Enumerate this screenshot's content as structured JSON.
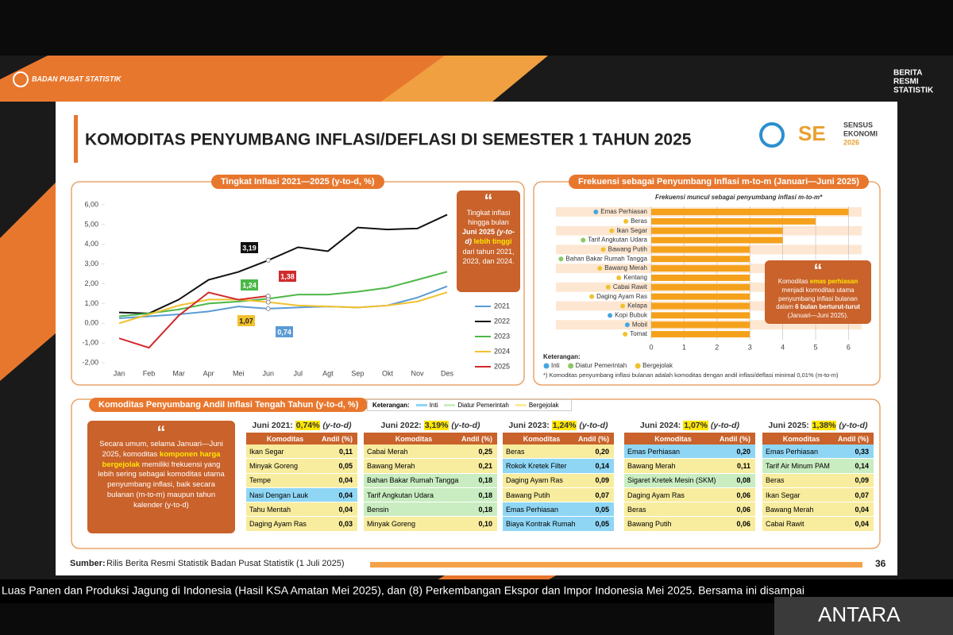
{
  "header": {
    "org": "BADAN PUSAT STATISTIK",
    "brand": [
      "BERITA",
      "RESMI",
      "STATISTIK"
    ],
    "title": "KOMODITAS PENYUMBANG INFLASI/DEFLASI DI SEMESTER 1 TAHUN 2025",
    "sensus": [
      "SENSUS",
      "EKONOMI",
      "2026"
    ]
  },
  "chart_data": [
    {
      "type": "line",
      "title": "Tingkat Inflasi 2021—2025 (y-to-d, %)",
      "categories": [
        "Jan",
        "Feb",
        "Mar",
        "Apr",
        "Mei",
        "Jun",
        "Jul",
        "Agt",
        "Sep",
        "Okt",
        "Nov",
        "Des"
      ],
      "ylim": [
        -2,
        6
      ],
      "yticks": [
        {
          "value": 6,
          "label": "6,00"
        },
        {
          "value": 5,
          "label": "5,00"
        },
        {
          "value": 4,
          "label": "4,00"
        },
        {
          "value": 3,
          "label": "3,00"
        },
        {
          "value": 2,
          "label": "2,00"
        },
        {
          "value": 1,
          "label": "1,00"
        },
        {
          "value": 0,
          "label": "0,00"
        },
        {
          "value": -1,
          "label": "-1,00"
        },
        {
          "value": -2,
          "label": "-2,00"
        }
      ],
      "series": [
        {
          "name": "2021",
          "color": "#5b9bd5",
          "values": [
            0.25,
            0.35,
            0.45,
            0.6,
            0.85,
            0.74,
            0.8,
            0.85,
            0.8,
            0.9,
            1.3,
            1.87
          ],
          "value_labels": [
            null,
            null,
            null,
            null,
            null,
            "0,74",
            null,
            null,
            null,
            null,
            null,
            null
          ]
        },
        {
          "name": "2022",
          "color": "#111111",
          "values": [
            0.55,
            0.5,
            1.2,
            2.2,
            2.6,
            3.19,
            3.85,
            3.65,
            4.85,
            4.75,
            4.8,
            5.5
          ],
          "value_labels": [
            null,
            null,
            null,
            null,
            null,
            "3,19",
            null,
            null,
            null,
            null,
            null,
            null
          ]
        },
        {
          "name": "2023",
          "color": "#4cb848",
          "values": [
            0.35,
            0.5,
            0.7,
            1.0,
            1.1,
            1.24,
            1.45,
            1.45,
            1.6,
            1.8,
            2.2,
            2.61
          ],
          "value_labels": [
            null,
            null,
            null,
            null,
            null,
            "1,24",
            null,
            null,
            null,
            null,
            null,
            null
          ]
        },
        {
          "name": "2024",
          "color": "#f2c12e",
          "values": [
            0.0,
            0.45,
            0.9,
            1.2,
            1.2,
            1.07,
            0.9,
            0.85,
            0.8,
            0.9,
            1.1,
            1.57
          ],
          "value_labels": [
            null,
            null,
            null,
            null,
            null,
            "1,07",
            null,
            null,
            null,
            null,
            null,
            null
          ]
        },
        {
          "name": "2025",
          "color": "#d12b2b",
          "values": [
            -0.76,
            -1.24,
            0.39,
            1.56,
            1.19,
            1.38,
            null,
            null,
            null,
            null,
            null,
            null
          ],
          "value_labels": [
            null,
            null,
            null,
            null,
            null,
            "1,38",
            null,
            null,
            null,
            null,
            null,
            null
          ]
        }
      ],
      "callout": [
        "Tingkat inflasi hingga bulan",
        "Juni 2025",
        "(y-to-d)",
        "lebih tinggi",
        "dari tahun 2021, 2023, dan 2024."
      ]
    },
    {
      "type": "bar",
      "orientation": "horizontal",
      "title": "Frekuensi sebagai Penyumbang Inflasi m-to-m (Januari—Juni 2025)",
      "subtitle": "Frekuensi muncul sebagai penyumbang inflasi m-to-m*",
      "categories": [
        "Emas Perhiasan",
        "Beras",
        "Ikan Segar",
        "Tarif Angkutan Udara",
        "Bawang Putih",
        "Bahan Bakar Rumah Tangga",
        "Bawang Merah",
        "Kentang",
        "Cabai Rawit",
        "Daging Ayam Ras",
        "Kelapa",
        "Kopi Bubuk",
        "Mobil",
        "Tomat"
      ],
      "values": [
        6,
        5,
        4,
        4,
        3,
        3,
        3,
        3,
        3,
        3,
        3,
        3,
        3,
        3
      ],
      "category_groups": [
        0,
        2,
        2,
        1,
        2,
        1,
        2,
        2,
        2,
        2,
        2,
        0,
        0,
        2
      ],
      "color": "#f5a11c",
      "xlim": [
        0,
        6.4
      ],
      "xticks": [
        0,
        1,
        2,
        3,
        4,
        5,
        6
      ],
      "legend_label": "Keterangan:",
      "groups": [
        {
          "name": "Inti",
          "color": "#45a6e0"
        },
        {
          "name": "Diatur Pemerintah",
          "color": "#8cc864"
        },
        {
          "name": "Bergejolak",
          "color": "#f2c12e"
        }
      ],
      "footnote": "*) Komoditas penyumbang inflasi bulanan adalah komoditas dengan andil inflasi/deflasi minimal 0,01% (m-to-m)",
      "callout": [
        "Komoditas",
        "emas perhiasan",
        "menjadi komoditas utama penyumbang inflasi bulanan dalam",
        "6 bulan berturut-turut",
        "(Januari—Juni 2025)."
      ]
    }
  ],
  "contributors": {
    "title": "Komoditas Penyumbang Andil Inflasi Tengah Tahun (y-to-d, %)",
    "legend": {
      "label": "Keterangan:",
      "items": [
        {
          "name": "Inti",
          "color": "#8fd6f5"
        },
        {
          "name": "Diatur Pemerintah",
          "color": "#c9edc1"
        },
        {
          "name": "Bergejolak",
          "color": "#f8ec9e"
        }
      ]
    },
    "callout": [
      "Secara umum, selama Januari—Juni 2025, komoditas",
      "komponen harga bergejolak",
      "memiliki frekuensi yang lebih sering sebagai komoditas utama penyumbang inflasi, baik secara bulanan (m-to-m) maupun tahun kalender (y-to-d)"
    ],
    "tables": [
      {
        "title": "Juni 2021:",
        "rate": "0,74%",
        "suffix": "(y-to-d)",
        "columns": [
          "Komoditas",
          "Andil (%)"
        ],
        "rows": [
          [
            "Ikan Segar",
            "0,11"
          ],
          [
            "Minyak Goreng",
            "0,05"
          ],
          [
            "Tempe",
            "0,04"
          ],
          [
            "Nasi Dengan Lauk",
            "0,04"
          ],
          [
            "Tahu Mentah",
            "0,04"
          ],
          [
            "Daging Ayam Ras",
            "0,03"
          ]
        ],
        "row_groups": [
          2,
          2,
          2,
          0,
          2,
          2
        ]
      },
      {
        "title": "Juni 2022:",
        "rate": "3,19%",
        "suffix": "(y-to-d)",
        "columns": [
          "Komoditas",
          "Andil (%)"
        ],
        "rows": [
          [
            "Cabai Merah",
            "0,25"
          ],
          [
            "Bawang Merah",
            "0,21"
          ],
          [
            "Bahan Bakar Rumah Tangga",
            "0,18"
          ],
          [
            "Tarif Angkutan Udara",
            "0,18"
          ],
          [
            "Bensin",
            "0,18"
          ],
          [
            "Minyak Goreng",
            "0,10"
          ]
        ],
        "row_groups": [
          2,
          2,
          1,
          1,
          1,
          2
        ]
      },
      {
        "title": "Juni 2023:",
        "rate": "1,24%",
        "suffix": "(y-to-d)",
        "columns": [
          "Komoditas",
          "Andil (%)"
        ],
        "rows": [
          [
            "Beras",
            "0,20"
          ],
          [
            "Rokok Kretek Filter",
            "0,14"
          ],
          [
            "Daging Ayam Ras",
            "0,09"
          ],
          [
            "Bawang Putih",
            "0,07"
          ],
          [
            "Emas Perhiasan",
            "0,05"
          ],
          [
            "Biaya Kontrak Rumah",
            "0,05"
          ]
        ],
        "row_groups": [
          2,
          0,
          2,
          2,
          0,
          0
        ]
      },
      {
        "title": "Juni 2024:",
        "rate": "1,07%",
        "suffix": "(y-to-d)",
        "columns": [
          "Komoditas",
          "Andil (%)"
        ],
        "rows": [
          [
            "Emas Perhiasan",
            "0,20"
          ],
          [
            "Bawang Merah",
            "0,11"
          ],
          [
            "Sigaret Kretek Mesin (SKM)",
            "0,08"
          ],
          [
            "Daging Ayam Ras",
            "0,06"
          ],
          [
            "Beras",
            "0,06"
          ],
          [
            "Bawang Putih",
            "0,06"
          ]
        ],
        "row_groups": [
          0,
          2,
          1,
          2,
          2,
          2
        ]
      },
      {
        "title": "Juni 2025:",
        "rate": "1,38%",
        "suffix": "(y-to-d)",
        "columns": [
          "Komoditas",
          "Andil (%)"
        ],
        "rows": [
          [
            "Emas Perhiasan",
            "0,33"
          ],
          [
            "Tarif Air Minum PAM",
            "0,14"
          ],
          [
            "Beras",
            "0,09"
          ],
          [
            "Ikan Segar",
            "0,07"
          ],
          [
            "Bawang Merah",
            "0,04"
          ],
          [
            "Cabai Rawit",
            "0,04"
          ]
        ],
        "row_groups": [
          0,
          1,
          2,
          2,
          2,
          2
        ]
      }
    ]
  },
  "footer": {
    "source_label": "Sumber:",
    "source": "Rilis Berita Resmi Statistik Badan Pusat Statistik (1 Juli 2025)",
    "page": "36"
  },
  "ticker": "Luas Panen dan Produksi Jagung di Indonesia (Hasil KSA Amatan Mei 2025), dan (8) Perkembangan Ekspor dan Impor Indonesia Mei 2025. Bersama ini disampai",
  "watermark": "ANTARA"
}
